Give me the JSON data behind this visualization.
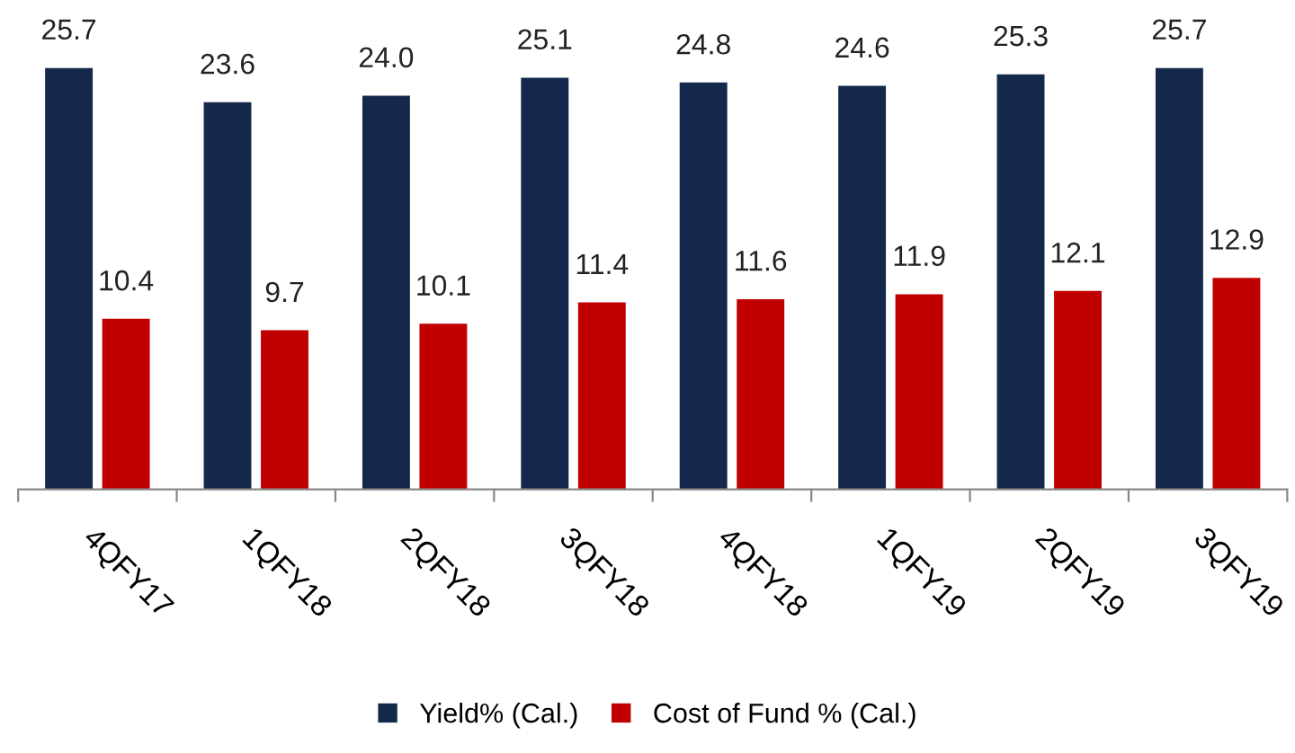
{
  "chart_data": {
    "type": "bar",
    "categories": [
      "4QFY17",
      "1QFY18",
      "2QFY18",
      "3QFY18",
      "4QFY18",
      "1QFY19",
      "2QFY19",
      "3QFY19"
    ],
    "series": [
      {
        "name": "Yield% (Cal.)",
        "color": "#14284b",
        "values": [
          25.7,
          23.6,
          24.0,
          25.1,
          24.8,
          24.6,
          25.3,
          25.7
        ],
        "value_labels": [
          "25.7",
          "23.6",
          "24.0",
          "25.1",
          "24.8",
          "24.6",
          "25.3",
          "25.7"
        ]
      },
      {
        "name": "Cost of Fund % (Cal.)",
        "color": "#c00000",
        "values": [
          10.4,
          9.7,
          10.1,
          11.4,
          11.6,
          11.9,
          12.1,
          12.9
        ],
        "value_labels": [
          "10.4",
          "9.7",
          "10.1",
          "11.4",
          "11.6",
          "11.9",
          "12.1",
          "12.9"
        ]
      }
    ],
    "legend": "bottom",
    "grid": false
  }
}
